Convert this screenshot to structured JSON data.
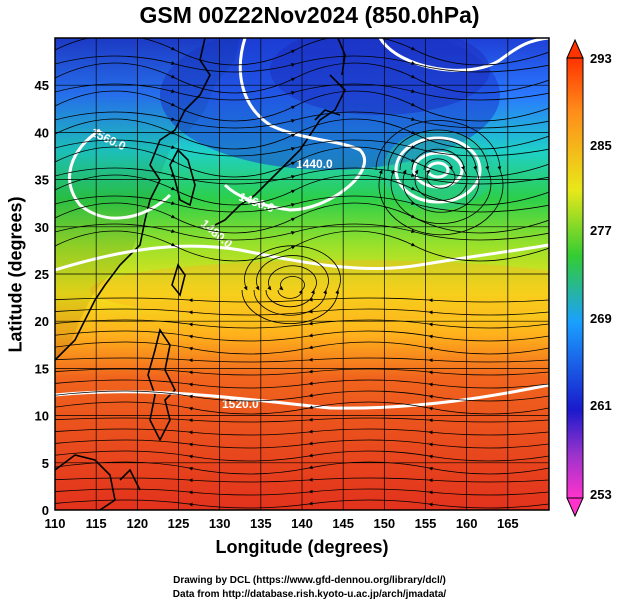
{
  "title": "GSM 00Z22Nov2024 (850.0hPa)",
  "xlabel": "Longitude (degrees)",
  "ylabel": "Latitude  (degrees)",
  "credits": [
    "Drawing by DCL (https://www.gfd-dennou.org/library/dcl/)",
    "Data from http://database.rish.kyoto-u.ac.jp/arch/jmadata/"
  ],
  "map": {
    "lon_range": [
      110,
      170
    ],
    "lat_range": [
      0,
      50
    ],
    "lon_ticks": [
      "110",
      "115",
      "120",
      "125",
      "130",
      "135",
      "140",
      "145",
      "150",
      "155",
      "160",
      "165"
    ],
    "lat_ticks": [
      "0",
      "5",
      "10",
      "15",
      "20",
      "25",
      "30",
      "35",
      "40",
      "45"
    ],
    "grid": true,
    "field": "temperature",
    "colormap": [
      "#ff33cc",
      "#1a1acc",
      "#1aa0ff",
      "#22dd66",
      "#e8e81a",
      "#ff8c1a",
      "#ee3322"
    ],
    "contour_labels": [
      "1560.0",
      "1440.0",
      "1460.0",
      "1480.0",
      "1520.0",
      "1440.0"
    ]
  },
  "colorbar": {
    "labels": [
      "293",
      "285",
      "277",
      "269",
      "261",
      "253"
    ],
    "range": [
      253,
      293
    ]
  }
}
